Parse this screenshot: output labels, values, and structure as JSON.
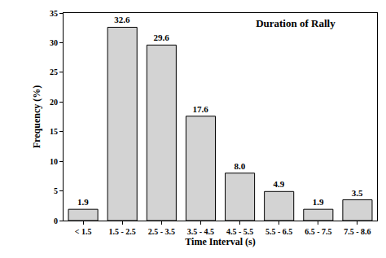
{
  "chart_data": {
    "type": "bar",
    "title": "Duration of Rally",
    "x_label": "Time Interval (s)",
    "y_label": "Frequency (%)",
    "categories": [
      "< 1.5",
      "1.5 - 2.5",
      "2.5 - 3.5",
      "3.5 - 4.5",
      "4.5 - 5.5",
      "5.5 - 6.5",
      "6.5 - 7.5",
      "7.5 - 8.6"
    ],
    "values": [
      1.9,
      32.6,
      29.6,
      17.6,
      8.0,
      4.9,
      1.9,
      3.5
    ],
    "value_labels": [
      "1.9",
      "32.6",
      "29.6",
      "17.6",
      "8.0",
      "4.9",
      "1.9",
      "3.5"
    ],
    "color": "#d3d3d3",
    "ylim": [
      0,
      35
    ],
    "yticks": [
      0,
      5,
      10,
      15,
      20,
      25,
      30,
      35
    ],
    "grid": false,
    "data_labels": true
  }
}
